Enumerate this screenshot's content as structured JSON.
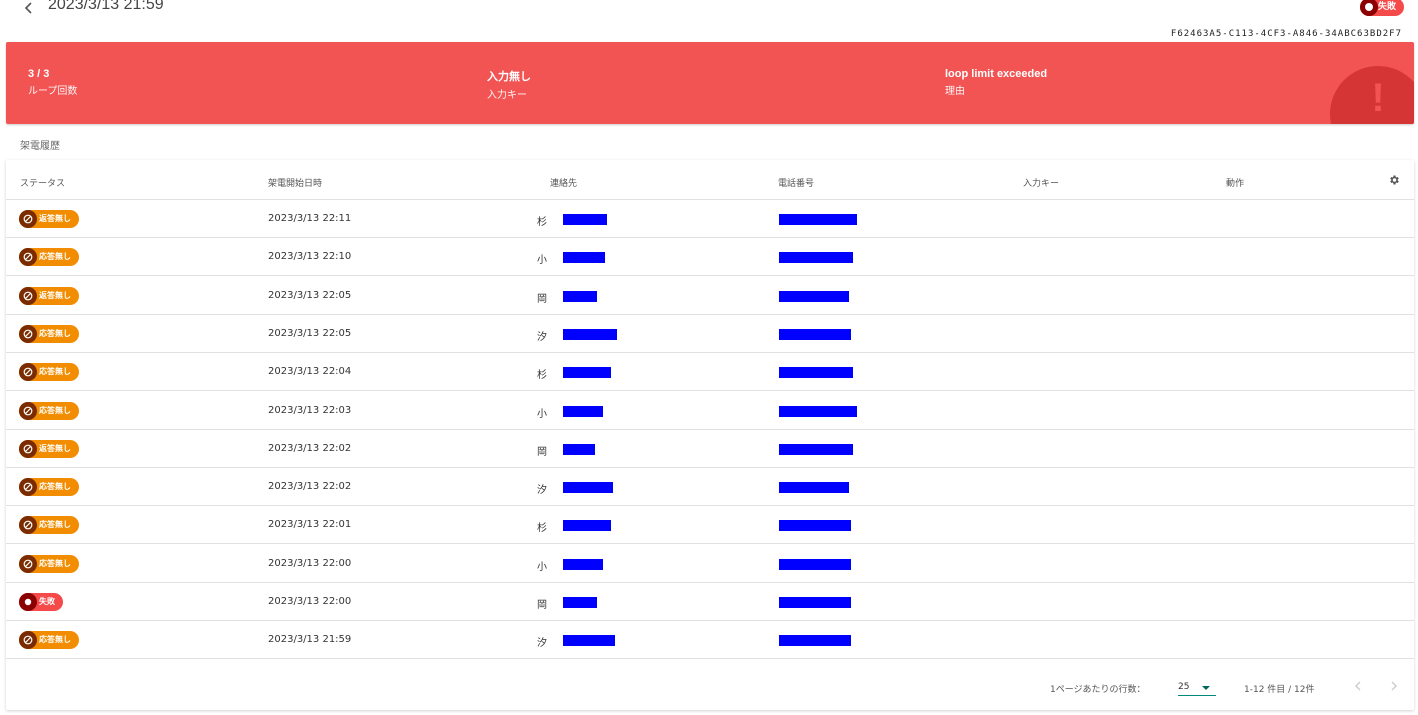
{
  "header": {
    "title": "2023/3/13 21:59",
    "status_label": "失敗",
    "uuid": "F62463A5-C113-4CF3-A846-34ABC63BD2F7"
  },
  "summary": {
    "loop_value": "3 / 3",
    "loop_label": "ループ回数",
    "input_value": "入力無し",
    "input_label": "入力キー",
    "reason_value": "loop limit exceeded",
    "reason_label": "理由",
    "alert_glyph": "!"
  },
  "section_title": "架電履歴",
  "table": {
    "columns": [
      "ステータス",
      "架電開始日時",
      "連絡先",
      "電話番号",
      "入力キー",
      "動作"
    ],
    "rows": [
      {
        "status": "返答無し",
        "type": "orange",
        "datetime": "2023/3/13 22:11",
        "contact": "杉"
      },
      {
        "status": "応答無し",
        "type": "orange",
        "datetime": "2023/3/13 22:10",
        "contact": "小"
      },
      {
        "status": "返答無し",
        "type": "orange",
        "datetime": "2023/3/13 22:05",
        "contact": "岡"
      },
      {
        "status": "応答無し",
        "type": "orange",
        "datetime": "2023/3/13 22:05",
        "contact": "汐"
      },
      {
        "status": "応答無し",
        "type": "orange",
        "datetime": "2023/3/13 22:04",
        "contact": "杉"
      },
      {
        "status": "応答無し",
        "type": "orange",
        "datetime": "2023/3/13 22:03",
        "contact": "小"
      },
      {
        "status": "返答無し",
        "type": "orange",
        "datetime": "2023/3/13 22:02",
        "contact": "岡"
      },
      {
        "status": "応答無し",
        "type": "orange",
        "datetime": "2023/3/13 22:02",
        "contact": "汐"
      },
      {
        "status": "応答無し",
        "type": "orange",
        "datetime": "2023/3/13 22:01",
        "contact": "杉"
      },
      {
        "status": "応答無し",
        "type": "orange",
        "datetime": "2023/3/13 22:00",
        "contact": "小"
      },
      {
        "status": "失敗",
        "type": "red",
        "datetime": "2023/3/13 22:00",
        "contact": "岡"
      },
      {
        "status": "応答無し",
        "type": "orange",
        "datetime": "2023/3/13 21:59",
        "contact": "汐"
      }
    ]
  },
  "footer": {
    "rows_per_page_label": "1ページあたりの行数：",
    "rows_per_page_value": "25",
    "range_text": "1-12 件目 / 12件"
  },
  "colors": {
    "banner": "#f25353",
    "badge_orange": "#f28c00",
    "badge_red": "#f44a4a",
    "redaction": "#0000ff"
  }
}
